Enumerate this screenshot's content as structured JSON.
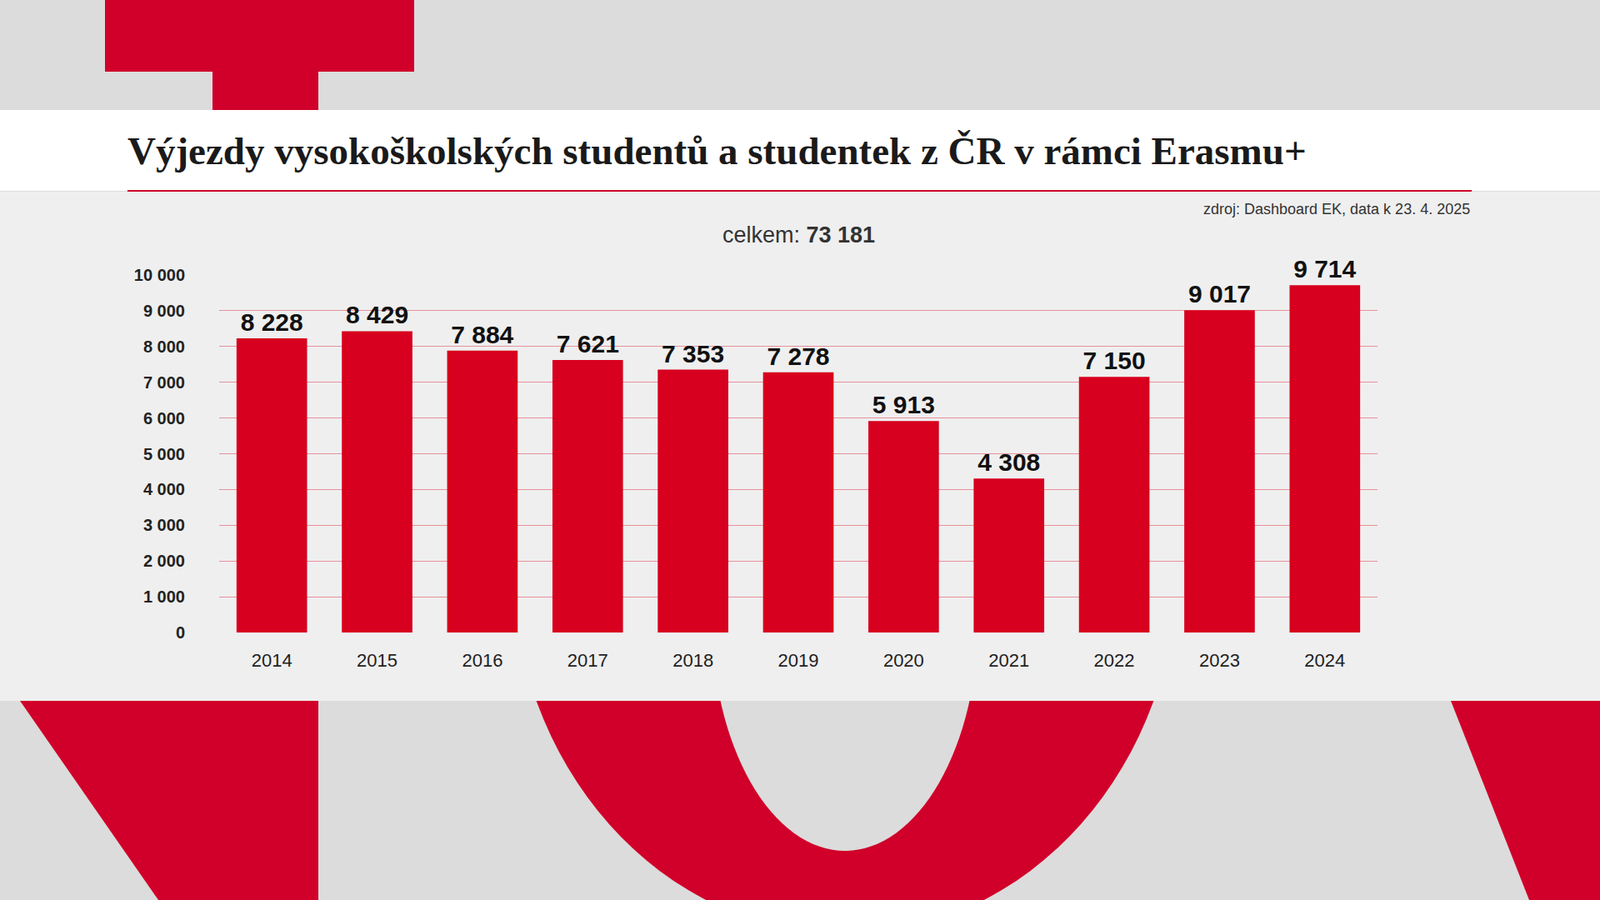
{
  "chart_data": {
    "type": "bar",
    "title": "Výjezdy vysokoškolských studentů a studentek z ČR v rámci Erasmu+",
    "annotations": [
      "zdroj: Dashboard EK, data k 23. 4. 2025",
      "celkem: 73 181"
    ],
    "categories": [
      "2014",
      "2015",
      "2016",
      "2017",
      "2018",
      "2019",
      "2020",
      "2021",
      "2022",
      "2023",
      "2024"
    ],
    "values": [
      8228,
      8429,
      7884,
      7621,
      7353,
      7278,
      5913,
      4308,
      7150,
      9017,
      9714
    ],
    "value_labels": [
      "8 228",
      "8 429",
      "7 884",
      "7 621",
      "7 353",
      "7 278",
      "5 913",
      "4 308",
      "7 150",
      "9 017",
      "9 714"
    ],
    "color": "#d7001e",
    "ylim": [
      0,
      10000
    ],
    "yticks": [
      0,
      {
        "value": 1000,
        "label": "1 000"
      },
      {
        "value": 2000,
        "label": "2 000"
      },
      {
        "value": 3000,
        "label": "3 000"
      },
      {
        "value": 4000,
        "label": "4 000"
      },
      {
        "value": 5000,
        "label": "5 000"
      },
      {
        "value": 6000,
        "label": "6 000"
      },
      {
        "value": 7000,
        "label": "7 000"
      },
      {
        "value": 8000,
        "label": "8 000"
      },
      {
        "value": 9000,
        "label": "9 000"
      },
      {
        "value": 10000,
        "label": "10 000"
      }
    ],
    "grid": true,
    "data_labels": true
  }
}
